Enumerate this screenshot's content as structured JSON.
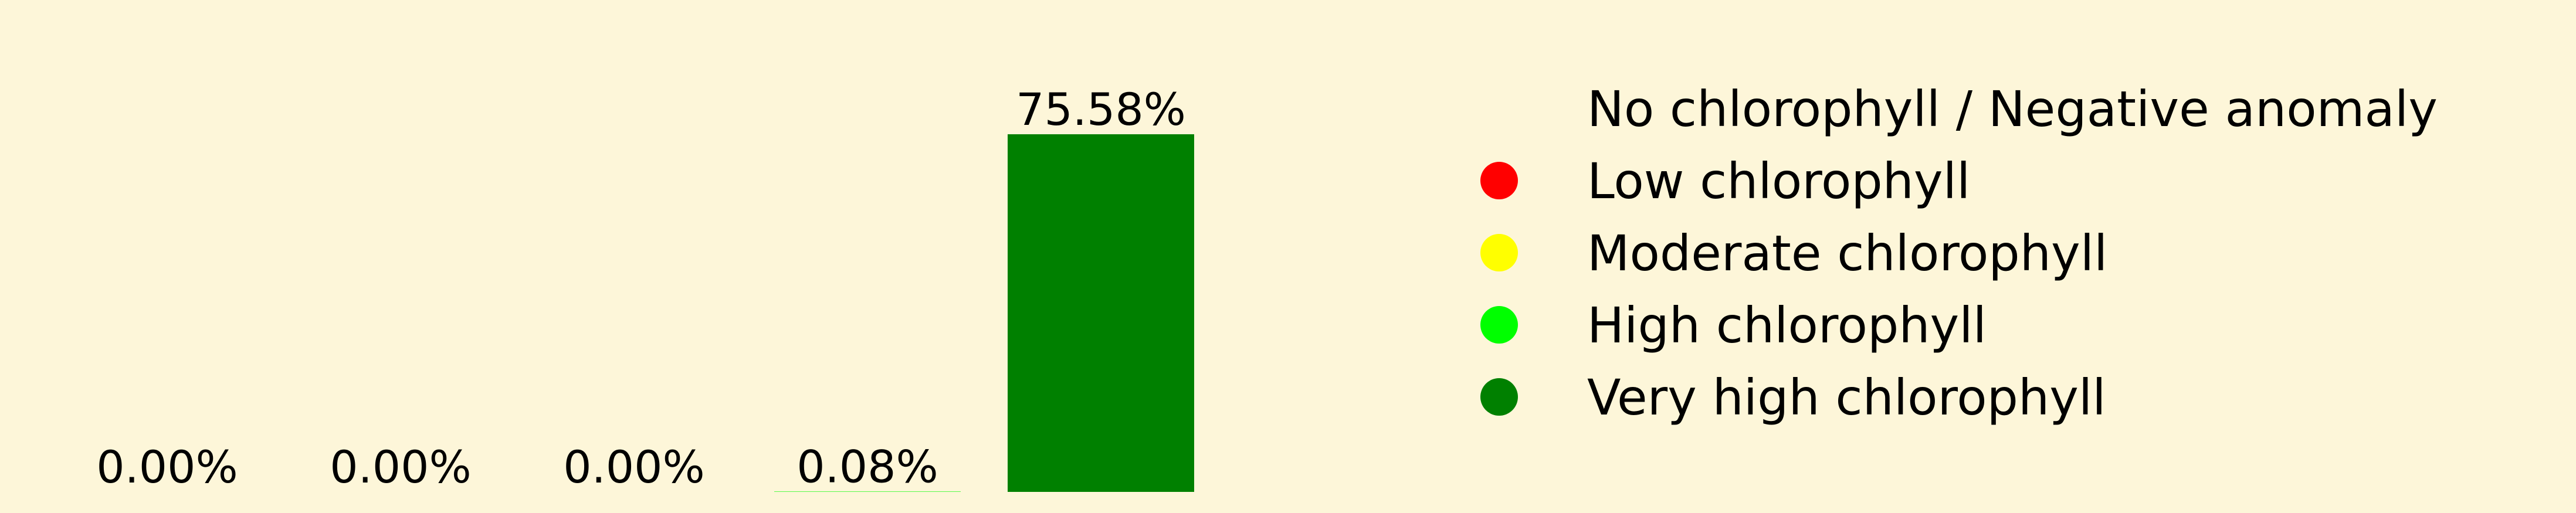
{
  "chart_data": {
    "type": "bar",
    "categories": [
      "No chlorophyll / Negative anomaly",
      "Low chlorophyll",
      "Moderate chlorophyll",
      "High chlorophyll",
      "Very high chlorophyll"
    ],
    "values": [
      0.0,
      0.0,
      0.0,
      0.08,
      75.58
    ],
    "data_labels": [
      "0.00%",
      "0.00%",
      "0.00%",
      "0.08%",
      "75.58%"
    ],
    "colors": [
      "#fdf6d9",
      "#ff0000",
      "#ffff00",
      "#00ff00",
      "#008000"
    ],
    "value_unit": "%",
    "ylim": [
      0,
      75.58
    ],
    "axes_visible": false,
    "grid": false,
    "title": "",
    "xlabel": "",
    "ylabel": "",
    "legend": {
      "placement": "right",
      "entries": [
        {
          "label": "No chlorophyll / Negative anomaly",
          "color": "#fdf6d9",
          "marker": "none"
        },
        {
          "label": "Low chlorophyll",
          "color": "#ff0000",
          "marker": "circle"
        },
        {
          "label": "Moderate chlorophyll",
          "color": "#ffff00",
          "marker": "circle"
        },
        {
          "label": "High chlorophyll",
          "color": "#00ff00",
          "marker": "circle"
        },
        {
          "label": "Very high chlorophyll",
          "color": "#008000",
          "marker": "circle"
        }
      ]
    }
  },
  "background_color": "#fdf6d9"
}
